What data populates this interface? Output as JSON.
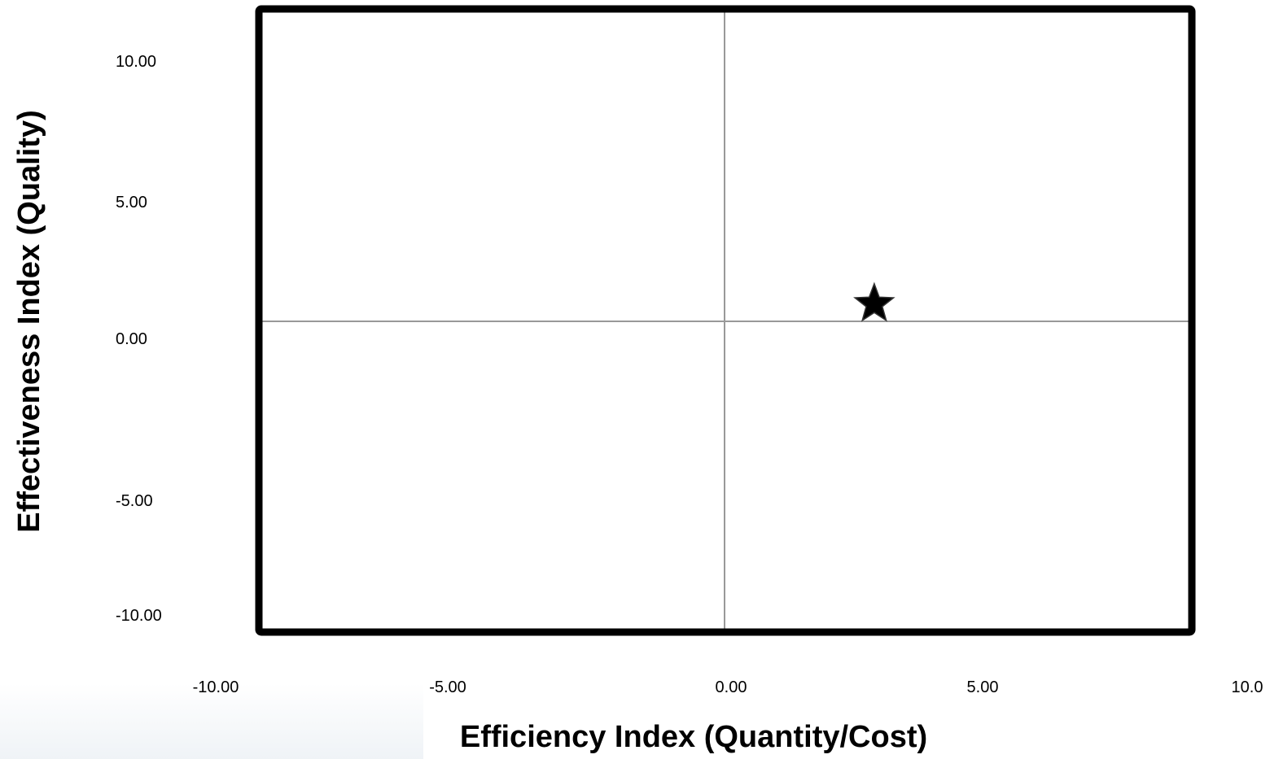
{
  "chart_data": {
    "type": "scatter",
    "title": "",
    "xlabel": "Efficiency Index (Quantity/Cost)",
    "ylabel": "Effectiveness Index (Quality)",
    "xticks": [
      "-10.00",
      "-5.00",
      "0.00",
      "5.00",
      "10.0"
    ],
    "yticks": [
      "10.00",
      "5.00",
      "0.00",
      "-5.00",
      "-10.00"
    ],
    "points": [
      {
        "x": 2.9,
        "y": 0.6,
        "marker": "star"
      }
    ],
    "grid": false,
    "legend": "none",
    "colors": {
      "frame": "#000000",
      "axes": "#999999",
      "marker": "#000000"
    }
  }
}
